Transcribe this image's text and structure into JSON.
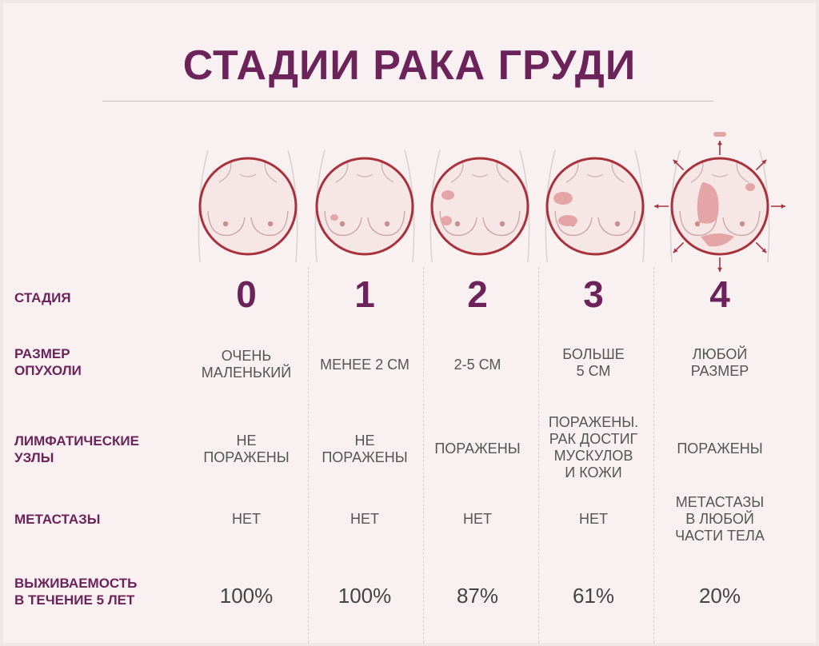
{
  "title": "СТАДИИ РАКА ГРУДИ",
  "row_labels": {
    "stage": "СТАДИЯ",
    "tumor_size_1": "РАЗМЕР",
    "tumor_size_2": "ОПУХОЛИ",
    "lymph_1": "ЛИМФАТИЧЕСКИЕ",
    "lymph_2": "УЗЛЫ",
    "metastases": "МЕТАСТАЗЫ",
    "survival_1": "ВЫЖИВАЕМОСТЬ",
    "survival_2": "В ТЕЧЕНИЕ 5 ЛЕТ"
  },
  "stages": [
    {
      "number": "0",
      "tumor_size": [
        "ОЧЕНЬ",
        "МАЛЕНЬКИЙ"
      ],
      "lymph": [
        "НЕ",
        "ПОРАЖЕНЫ"
      ],
      "metastases": [
        "НЕТ"
      ],
      "survival": "100%"
    },
    {
      "number": "1",
      "tumor_size": [
        "МЕНЕЕ 2 СМ"
      ],
      "lymph": [
        "НЕ",
        "ПОРАЖЕНЫ"
      ],
      "metastases": [
        "НЕТ"
      ],
      "survival": "100%"
    },
    {
      "number": "2",
      "tumor_size": [
        "2-5 СМ"
      ],
      "lymph": [
        "ПОРАЖЕНЫ"
      ],
      "metastases": [
        "НЕТ"
      ],
      "survival": "87%"
    },
    {
      "number": "3",
      "tumor_size": [
        "БОЛЬШЕ",
        "5 СМ"
      ],
      "lymph": [
        "ПОРАЖЕНЫ.",
        "РАК ДОСТИГ",
        "МУСКУЛОВ",
        "И КОЖИ"
      ],
      "metastases": [
        "НЕТ"
      ],
      "survival": "61%"
    },
    {
      "number": "4",
      "tumor_size": [
        "ЛЮБОЙ",
        "РАЗМЕР"
      ],
      "lymph": [
        "ПОРАЖЕНЫ"
      ],
      "metastases": [
        "МЕТАСТАЗЫ",
        "В ЛЮБОЙ",
        "ЧАСТИ ТЕЛА"
      ],
      "survival": "20%"
    }
  ],
  "colors": {
    "accent": "#6b2359",
    "ring": "#a8323c",
    "tumor": "#e3a5a5"
  },
  "icons": [
    "breast-stage-0-icon",
    "breast-stage-1-icon",
    "breast-stage-2-icon",
    "breast-stage-3-icon",
    "breast-stage-4-icon"
  ]
}
